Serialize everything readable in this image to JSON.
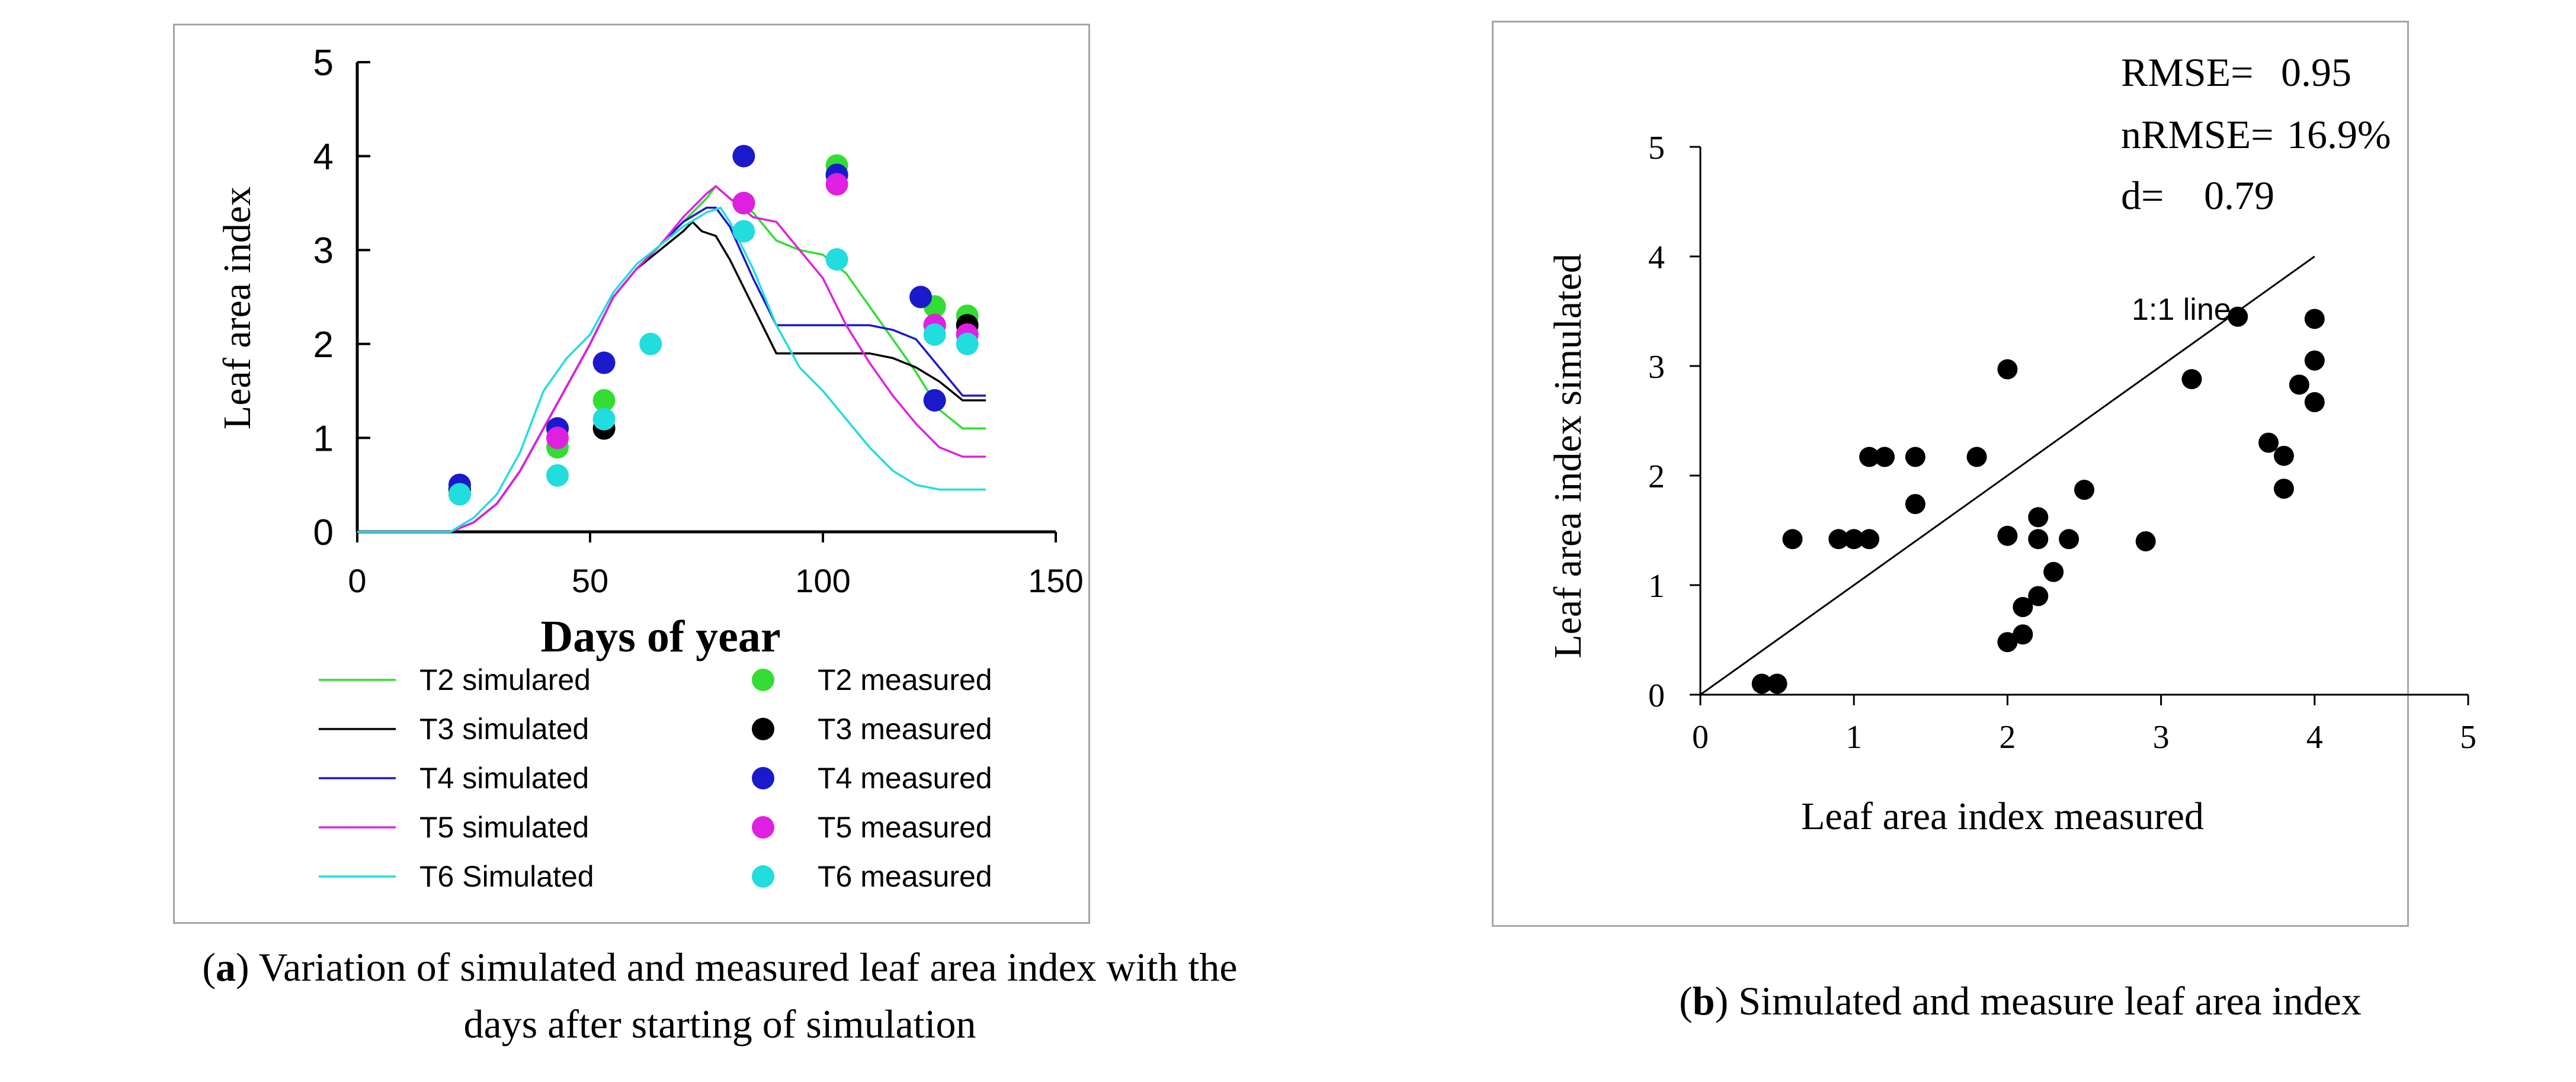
{
  "chart_data": [
    {
      "type": "line",
      "panel": "a",
      "xlabel": "Days of year",
      "ylabel": "Leaf area index",
      "xlim": [
        0,
        150
      ],
      "ylim": [
        0,
        5
      ],
      "xticks": [
        0,
        50,
        100,
        150
      ],
      "yticks": [
        0,
        1,
        2,
        3,
        4,
        5
      ],
      "legend_position": "bottom",
      "series": [
        {
          "name": "T2 simulared",
          "kind": "line",
          "color": "#33dd33",
          "x": [
            0,
            20,
            25,
            30,
            35,
            40,
            45,
            50,
            55,
            60,
            65,
            70,
            75,
            77,
            80,
            85,
            90,
            95,
            100,
            105,
            110,
            115,
            120,
            125,
            130,
            135
          ],
          "y": [
            0,
            0,
            0.1,
            0.3,
            0.65,
            1.1,
            1.55,
            2.0,
            2.5,
            2.8,
            3.05,
            3.3,
            3.55,
            3.68,
            3.55,
            3.4,
            3.1,
            3.0,
            2.95,
            2.75,
            2.4,
            2.05,
            1.7,
            1.3,
            1.1,
            1.1
          ]
        },
        {
          "name": "T3 simulated",
          "kind": "line",
          "color": "#000000",
          "x": [
            0,
            20,
            25,
            30,
            35,
            40,
            45,
            50,
            55,
            60,
            65,
            70,
            72,
            74,
            77,
            80,
            85,
            90,
            95,
            100,
            105,
            110,
            115,
            120,
            125,
            130,
            135
          ],
          "y": [
            0,
            0,
            0.1,
            0.3,
            0.65,
            1.1,
            1.55,
            2.0,
            2.5,
            2.8,
            3.0,
            3.2,
            3.3,
            3.2,
            3.15,
            2.9,
            2.4,
            1.9,
            1.9,
            1.9,
            1.9,
            1.9,
            1.85,
            1.75,
            1.6,
            1.4,
            1.4
          ]
        },
        {
          "name": "T4 simulated",
          "kind": "line",
          "color": "#1a1acc",
          "x": [
            0,
            20,
            25,
            30,
            35,
            40,
            45,
            50,
            55,
            60,
            65,
            70,
            75,
            77,
            80,
            85,
            90,
            95,
            100,
            105,
            110,
            115,
            120,
            125,
            130,
            135
          ],
          "y": [
            0,
            0,
            0.1,
            0.3,
            0.65,
            1.1,
            1.55,
            2.0,
            2.5,
            2.8,
            3.05,
            3.3,
            3.45,
            3.45,
            3.25,
            2.7,
            2.2,
            2.2,
            2.2,
            2.2,
            2.2,
            2.15,
            2.05,
            1.75,
            1.45,
            1.45
          ]
        },
        {
          "name": "T5 simulated",
          "kind": "line",
          "color": "#e020e0",
          "x": [
            0,
            20,
            25,
            30,
            35,
            40,
            45,
            50,
            55,
            60,
            65,
            70,
            75,
            77,
            80,
            85,
            90,
            95,
            100,
            105,
            110,
            115,
            120,
            125,
            130,
            135
          ],
          "y": [
            0,
            0,
            0.1,
            0.3,
            0.65,
            1.1,
            1.55,
            2.0,
            2.5,
            2.8,
            3.05,
            3.35,
            3.6,
            3.68,
            3.55,
            3.35,
            3.3,
            3.0,
            2.7,
            2.2,
            1.8,
            1.45,
            1.15,
            0.9,
            0.8,
            0.8
          ]
        },
        {
          "name": "T6 Simulated",
          "kind": "line",
          "color": "#22dddd",
          "x": [
            0,
            20,
            25,
            30,
            35,
            40,
            45,
            50,
            55,
            60,
            65,
            70,
            75,
            78,
            80,
            85,
            90,
            95,
            100,
            105,
            110,
            115,
            120,
            125,
            130,
            135
          ],
          "y": [
            0,
            0,
            0.15,
            0.4,
            0.85,
            1.5,
            1.85,
            2.1,
            2.55,
            2.85,
            3.05,
            3.25,
            3.4,
            3.45,
            3.3,
            2.8,
            2.2,
            1.75,
            1.5,
            1.2,
            0.9,
            0.65,
            0.5,
            0.45,
            0.45,
            0.45
          ]
        },
        {
          "name": "T2 measured",
          "kind": "scatter",
          "color": "#33dd33",
          "x": [
            22,
            43,
            53,
            83,
            103,
            124,
            131
          ],
          "y": [
            0.45,
            0.9,
            1.4,
            3.5,
            3.9,
            2.4,
            2.3
          ]
        },
        {
          "name": "T3 measured",
          "kind": "scatter",
          "color": "#000000",
          "x": [
            22,
            43,
            53,
            83,
            103,
            124,
            131
          ],
          "y": [
            0.45,
            1.1,
            1.1,
            3.5,
            3.8,
            2.2,
            2.2
          ]
        },
        {
          "name": "T4 measured",
          "kind": "scatter",
          "color": "#1a1acc",
          "x": [
            22,
            43,
            53,
            83,
            103,
            121,
            124,
            131
          ],
          "y": [
            0.5,
            1.1,
            1.8,
            4.0,
            3.8,
            2.5,
            1.4,
            2.1
          ]
        },
        {
          "name": "T5 measured",
          "kind": "scatter",
          "color": "#e020e0",
          "x": [
            22,
            43,
            53,
            83,
            103,
            124,
            131
          ],
          "y": [
            0.4,
            1.0,
            1.2,
            3.5,
            3.7,
            2.2,
            2.1
          ]
        },
        {
          "name": "T6 measured",
          "kind": "scatter",
          "color": "#22dddd",
          "x": [
            22,
            43,
            53,
            63,
            83,
            103,
            124,
            131
          ],
          "y": [
            0.4,
            0.6,
            1.2,
            2.0,
            3.2,
            2.9,
            2.1,
            2.0
          ]
        }
      ],
      "caption": {
        "letter": "a",
        "line1": "Variation of simulated and measured leaf area index with the",
        "line2": "days after starting of simulation"
      }
    },
    {
      "type": "scatter",
      "panel": "b",
      "xlabel": "Leaf area index  measured",
      "ylabel": "Leaf area index   simulated",
      "xlim": [
        0,
        5
      ],
      "ylim": [
        0,
        5
      ],
      "xticks": [
        0,
        1,
        2,
        3,
        4,
        5
      ],
      "yticks": [
        0,
        1,
        2,
        3,
        4,
        5
      ],
      "line_label": "1:1 line",
      "line_range": [
        0,
        4
      ],
      "stats": [
        {
          "label": "RMSE=",
          "value": "0.95"
        },
        {
          "label": "nRMSE=",
          "value": "16.9%"
        },
        {
          "label": "d=",
          "value": "0.79"
        }
      ],
      "point_color": "#000000",
      "points": [
        [
          0.4,
          0.1
        ],
        [
          0.5,
          0.1
        ],
        [
          0.6,
          1.42
        ],
        [
          0.9,
          1.42
        ],
        [
          1.0,
          1.42
        ],
        [
          1.1,
          1.42
        ],
        [
          1.1,
          2.17
        ],
        [
          1.2,
          2.17
        ],
        [
          1.4,
          2.17
        ],
        [
          1.4,
          1.74
        ],
        [
          1.8,
          2.17
        ],
        [
          2.0,
          2.97
        ],
        [
          2.0,
          1.45
        ],
        [
          2.0,
          0.48
        ],
        [
          2.1,
          0.55
        ],
        [
          2.1,
          0.8
        ],
        [
          2.2,
          0.9
        ],
        [
          2.2,
          1.42
        ],
        [
          2.2,
          1.62
        ],
        [
          2.3,
          1.12
        ],
        [
          2.4,
          1.42
        ],
        [
          2.5,
          1.87
        ],
        [
          2.9,
          1.4
        ],
        [
          3.2,
          2.88
        ],
        [
          3.5,
          3.45
        ],
        [
          3.7,
          2.3
        ],
        [
          3.8,
          2.18
        ],
        [
          3.8,
          1.88
        ],
        [
          3.9,
          2.83
        ],
        [
          4.0,
          3.43
        ],
        [
          4.0,
          3.05
        ],
        [
          4.0,
          2.67
        ]
      ],
      "caption": {
        "letter": "b",
        "text": "Simulated and measure leaf area index"
      }
    }
  ]
}
